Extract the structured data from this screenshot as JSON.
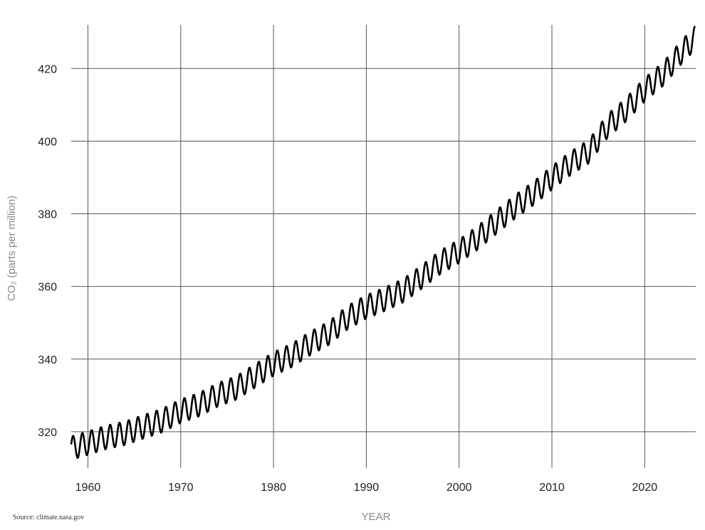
{
  "chart_data": {
    "type": "line",
    "xlabel": "YEAR",
    "ylabel": "CO₂ (parts per million)",
    "source": "Source: climate.nasa.gov",
    "xlim": [
      1958.2,
      2025.5
    ],
    "ylim": [
      310,
      432
    ],
    "x_ticks": [
      1960,
      1970,
      1980,
      1990,
      2000,
      2010,
      2020
    ],
    "y_ticks": [
      320,
      340,
      360,
      380,
      400,
      420
    ],
    "grid": true,
    "legend": "none",
    "line_color": "#000000",
    "series": [
      {
        "x": [
          1958.2,
          1960,
          1962,
          1964,
          1966,
          1968,
          1970,
          1972,
          1974,
          1976,
          1978,
          1980,
          1982,
          1984,
          1986,
          1988,
          1990,
          1992,
          1994,
          1996,
          1998,
          2000,
          2002,
          2004,
          2006,
          2008,
          2010,
          2012,
          2014,
          2016,
          2018,
          2020,
          2022,
          2024,
          2025.5
        ],
        "values": [
          315.5,
          316.9,
          318.5,
          319.6,
          321.4,
          323.1,
          325.7,
          327.5,
          330.2,
          332.1,
          335.4,
          338.7,
          341.1,
          344.4,
          347.2,
          351.5,
          354.4,
          356.5,
          358.9,
          362.7,
          366.7,
          369.7,
          373.4,
          377.7,
          381.9,
          385.6,
          389.9,
          393.9,
          397.2,
          404.2,
          408.7,
          414.2,
          418.5,
          424.6,
          428.6
        ],
        "seasonal_amplitude": 3.3
      }
    ]
  }
}
